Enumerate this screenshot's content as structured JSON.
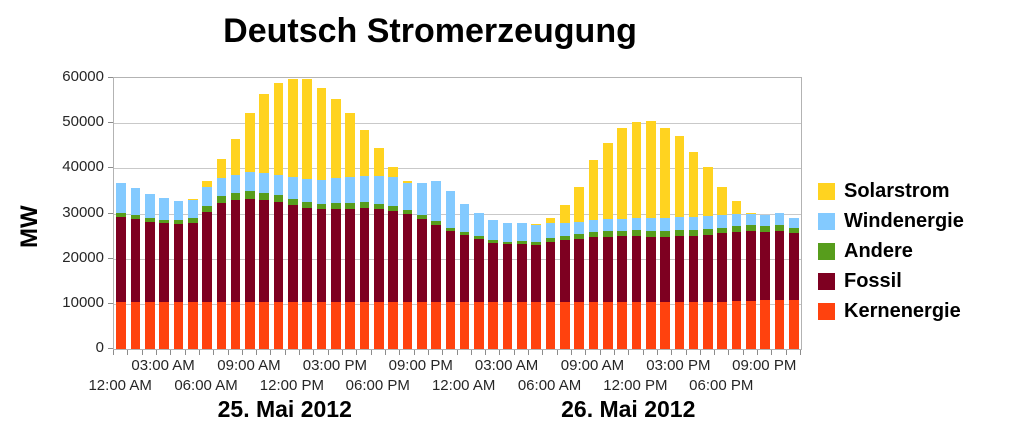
{
  "title": "Deutsch Stromerzeugung",
  "y_axis": {
    "label": "MW",
    "tick_labels": [
      "0",
      "10000",
      "20000",
      "30000",
      "40000",
      "50000",
      "60000"
    ]
  },
  "x_axis": {
    "day_labels": [
      "25. Mai 2012",
      "26. Mai 2012"
    ],
    "time_ticks": [
      {
        "hour": 0,
        "label": "12:00 AM",
        "row": "lower"
      },
      {
        "hour": 3,
        "label": "03:00 AM",
        "row": "upper"
      },
      {
        "hour": 6,
        "label": "06:00 AM",
        "row": "lower"
      },
      {
        "hour": 9,
        "label": "09:00 AM",
        "row": "upper"
      },
      {
        "hour": 12,
        "label": "12:00 PM",
        "row": "lower"
      },
      {
        "hour": 15,
        "label": "03:00 PM",
        "row": "upper"
      },
      {
        "hour": 18,
        "label": "06:00 PM",
        "row": "lower"
      },
      {
        "hour": 21,
        "label": "09:00 PM",
        "row": "upper"
      },
      {
        "hour": 24,
        "label": "12:00 AM",
        "row": "lower"
      },
      {
        "hour": 27,
        "label": "03:00 AM",
        "row": "upper"
      },
      {
        "hour": 30,
        "label": "06:00 AM",
        "row": "lower"
      },
      {
        "hour": 33,
        "label": "09:00 AM",
        "row": "upper"
      },
      {
        "hour": 36,
        "label": "12:00 PM",
        "row": "lower"
      },
      {
        "hour": 39,
        "label": "03:00 PM",
        "row": "upper"
      },
      {
        "hour": 42,
        "label": "06:00 PM",
        "row": "lower"
      },
      {
        "hour": 45,
        "label": "09:00 PM",
        "row": "upper"
      }
    ]
  },
  "legend": [
    {
      "label": "Solarstrom",
      "color": "#FFD320"
    },
    {
      "label": "Windenergie",
      "color": "#83CAFF"
    },
    {
      "label": "Andere",
      "color": "#579D1C"
    },
    {
      "label": "Fossil",
      "color": "#7E0021"
    },
    {
      "label": "Kernenergie",
      "color": "#FF420E"
    }
  ],
  "colors": {
    "plot_border": "#B3B3B3",
    "gridline": "#C9C9C9",
    "axis_tick": "#8C8C8C",
    "tick_text": "#262626",
    "title_text": "#000000"
  },
  "chart_data": {
    "type": "bar",
    "stacked": true,
    "title": "Deutsch Stromerzeugung",
    "ylabel": "MW",
    "ylim": [
      0,
      60000
    ],
    "y_ticks": [
      0,
      10000,
      20000,
      30000,
      40000,
      50000,
      60000
    ],
    "grid": true,
    "legend_position": "right",
    "days": [
      "25. Mai 2012",
      "26. Mai 2012"
    ],
    "hours_per_day": 24,
    "x_hours_from_start": [
      0,
      1,
      2,
      3,
      4,
      5,
      6,
      7,
      8,
      9,
      10,
      11,
      12,
      13,
      14,
      15,
      16,
      17,
      18,
      19,
      20,
      21,
      22,
      23,
      24,
      25,
      26,
      27,
      28,
      29,
      30,
      31,
      32,
      33,
      34,
      35,
      36,
      37,
      38,
      39,
      40,
      41,
      42,
      43,
      44,
      45,
      46,
      47
    ],
    "series": [
      {
        "name": "Kernenergie",
        "color": "#FF420E",
        "values": [
          10400,
          10400,
          10400,
          10400,
          10400,
          10400,
          10400,
          10400,
          10400,
          10400,
          10400,
          10400,
          10400,
          10400,
          10400,
          10400,
          10400,
          10400,
          10400,
          10400,
          10400,
          10400,
          10400,
          10400,
          10400,
          10400,
          10400,
          10400,
          10400,
          10400,
          10400,
          10400,
          10400,
          10400,
          10400,
          10400,
          10400,
          10400,
          10400,
          10400,
          10400,
          10400,
          10500,
          10600,
          10700,
          10800,
          10800,
          10800
        ]
      },
      {
        "name": "Fossil",
        "color": "#7E0021",
        "values": [
          18900,
          18400,
          17800,
          17400,
          17200,
          17600,
          20000,
          21900,
          22500,
          22900,
          22600,
          22100,
          21400,
          20800,
          20500,
          20600,
          20700,
          20800,
          20600,
          20200,
          19400,
          18300,
          17000,
          15700,
          14900,
          13900,
          13100,
          12800,
          12800,
          12700,
          13300,
          13700,
          14000,
          14300,
          14500,
          14600,
          14600,
          14500,
          14400,
          14600,
          14700,
          14900,
          15100,
          15300,
          15400,
          15200,
          15300,
          14900
        ]
      },
      {
        "name": "Andere",
        "color": "#579D1C",
        "values": [
          900,
          800,
          700,
          800,
          900,
          900,
          1300,
          1500,
          1600,
          1700,
          1600,
          1500,
          1400,
          1400,
          1300,
          1300,
          1300,
          1300,
          1200,
          1100,
          1000,
          900,
          900,
          800,
          700,
          700,
          600,
          600,
          700,
          700,
          800,
          900,
          1000,
          1100,
          1200,
          1200,
          1300,
          1300,
          1300,
          1300,
          1300,
          1300,
          1300,
          1300,
          1300,
          1300,
          1300,
          1200
        ]
      },
      {
        "name": "Windenergie",
        "color": "#83CAFF",
        "values": [
          6500,
          6100,
          5400,
          4800,
          4300,
          4300,
          4200,
          4100,
          4000,
          4100,
          4300,
          4600,
          4900,
          5100,
          5300,
          5500,
          5700,
          5900,
          6200,
          6400,
          6000,
          7200,
          8900,
          8100,
          6000,
          5200,
          4400,
          4200,
          4100,
          3700,
          3300,
          3000,
          2800,
          2700,
          2600,
          2600,
          2600,
          2700,
          2800,
          2900,
          2900,
          2900,
          2800,
          2700,
          2600,
          2400,
          2800,
          2200
        ]
      },
      {
        "name": "Solarstrom",
        "color": "#FFD320",
        "values": [
          0,
          0,
          0,
          0,
          0,
          100,
          1400,
          4100,
          7900,
          13200,
          17600,
          20300,
          21700,
          22100,
          20300,
          17600,
          14200,
          10200,
          6100,
          2100,
          500,
          0,
          0,
          0,
          0,
          0,
          0,
          0,
          0,
          100,
          1300,
          3900,
          7700,
          13300,
          17000,
          20100,
          21400,
          21600,
          20100,
          18000,
          14400,
          10700,
          6200,
          2900,
          200,
          0,
          0,
          0
        ]
      }
    ]
  }
}
